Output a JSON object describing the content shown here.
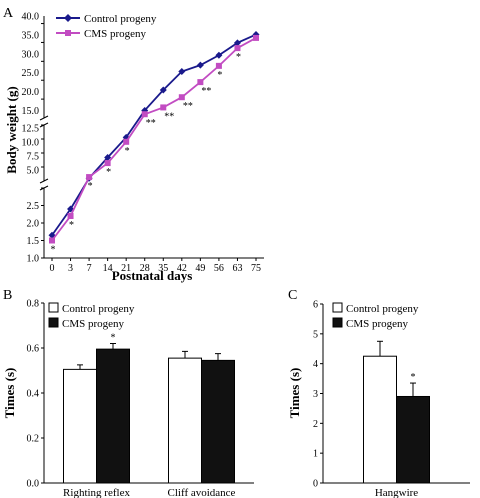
{
  "colors": {
    "control_line": "#1a1a8c",
    "cms_line": "#c24cc2",
    "star": "#555555",
    "bar_fill": "#111111"
  },
  "panels": {
    "A": {
      "letter": "A"
    },
    "B": {
      "letter": "B"
    },
    "C": {
      "letter": "C"
    }
  },
  "chart_data": [
    {
      "type": "line",
      "panel": "A",
      "xlabel": "Postnatal days",
      "ylabel": "Body weight (g)",
      "x": [
        0,
        3,
        7,
        14,
        21,
        28,
        35,
        42,
        49,
        56,
        63,
        75
      ],
      "x_tick_labels": [
        "0",
        "3",
        "7",
        "14",
        "21",
        "28",
        "35",
        "42",
        "49",
        "56",
        "63",
        "75"
      ],
      "axis_break": "broken y-axis with three segments",
      "y_segments": [
        {
          "range": [
            1.0,
            3.0
          ],
          "ticks": [
            "1.0",
            "1.5",
            "2.0",
            "2.5"
          ]
        },
        {
          "range": [
            3.0,
            13.0
          ],
          "ticks": [
            "5.0",
            "7.5",
            "10.0",
            "12.5"
          ]
        },
        {
          "range": [
            13.0,
            40.0
          ],
          "ticks": [
            "15.0",
            "20.0",
            "25.0",
            "30.0",
            "35.0",
            "40.0"
          ]
        }
      ],
      "series": [
        {
          "name": "Control progeny",
          "marker": "diamond",
          "color": "#1a1a8c",
          "values": [
            1.65,
            2.4,
            3.5,
            7.2,
            10.8,
            15.0,
            20.4,
            25.3,
            27.0,
            29.6,
            32.9,
            35.1
          ]
        },
        {
          "name": "CMS progeny",
          "marker": "square",
          "color": "#c24cc2",
          "values": [
            1.5,
            2.2,
            3.7,
            6.2,
            10.0,
            14.0,
            15.8,
            18.5,
            22.5,
            26.8,
            31.5,
            34.2
          ]
        }
      ],
      "annotations": [
        {
          "x": 0,
          "text": "*"
        },
        {
          "x": 3,
          "text": "*"
        },
        {
          "x": 7,
          "text": "*"
        },
        {
          "x": 14,
          "text": "*"
        },
        {
          "x": 21,
          "text": "*"
        },
        {
          "x": 28,
          "text": "**"
        },
        {
          "x": 35,
          "text": "**"
        },
        {
          "x": 42,
          "text": "**"
        },
        {
          "x": 49,
          "text": "**"
        },
        {
          "x": 56,
          "text": "*"
        },
        {
          "x": 63,
          "text": "*"
        }
      ],
      "legend_position": "top-left"
    },
    {
      "type": "bar",
      "panel": "B",
      "ylabel": "Times (s)",
      "ylim": [
        0,
        0.8
      ],
      "y_ticks": [
        "0.0",
        "0.2",
        "0.4",
        "0.6",
        "0.8"
      ],
      "categories": [
        "Righting reflex",
        "Cliff avoidance"
      ],
      "series": [
        {
          "name": "Control progeny",
          "fill": "white",
          "values": [
            0.505,
            0.555
          ],
          "errors": [
            0.02,
            0.03
          ]
        },
        {
          "name": "CMS progeny",
          "fill": "black",
          "values": [
            0.595,
            0.545
          ],
          "errors": [
            0.025,
            0.03
          ]
        }
      ],
      "annotations": [
        {
          "category": "Righting reflex",
          "series": "CMS progeny",
          "text": "*"
        }
      ],
      "legend_position": "top-left"
    },
    {
      "type": "bar",
      "panel": "C",
      "ylabel": "Times (s)",
      "ylim": [
        0,
        6
      ],
      "y_ticks": [
        "0",
        "1",
        "2",
        "3",
        "4",
        "5",
        "6"
      ],
      "categories": [
        "Hangwire"
      ],
      "series": [
        {
          "name": "Control progeny",
          "fill": "white",
          "values": [
            4.25
          ],
          "errors": [
            0.5
          ]
        },
        {
          "name": "CMS progeny",
          "fill": "black",
          "values": [
            2.9
          ],
          "errors": [
            0.45
          ]
        }
      ],
      "annotations": [
        {
          "category": "Hangwire",
          "series": "CMS progeny",
          "text": "*"
        }
      ],
      "legend_position": "top-left"
    }
  ]
}
